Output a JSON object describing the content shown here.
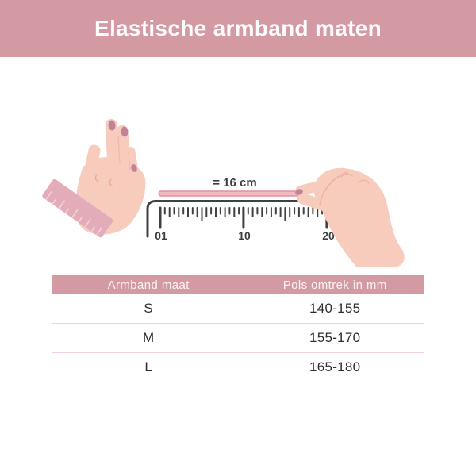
{
  "banner": {
    "title": "Elastische armband maten"
  },
  "illustration": {
    "measure_label": "= 16 cm",
    "ruler_labels": [
      "01",
      "10",
      "20"
    ]
  },
  "table": {
    "headers": [
      "Armband maat",
      "Pols omtrek in mm"
    ],
    "rows": [
      {
        "size": "S",
        "range": "140-155"
      },
      {
        "size": "M",
        "range": "155-170"
      },
      {
        "size": "L",
        "range": "165-180"
      }
    ]
  },
  "colors": {
    "accent": "#d49aa4",
    "skin": "#f8ccbd",
    "nail": "#bf8498",
    "tape": "#e2adb9",
    "strip_fill": "#f3b9c3",
    "strip_edge": "#e08fa0",
    "ruler": "#414141",
    "divider": "#efd2d4"
  }
}
